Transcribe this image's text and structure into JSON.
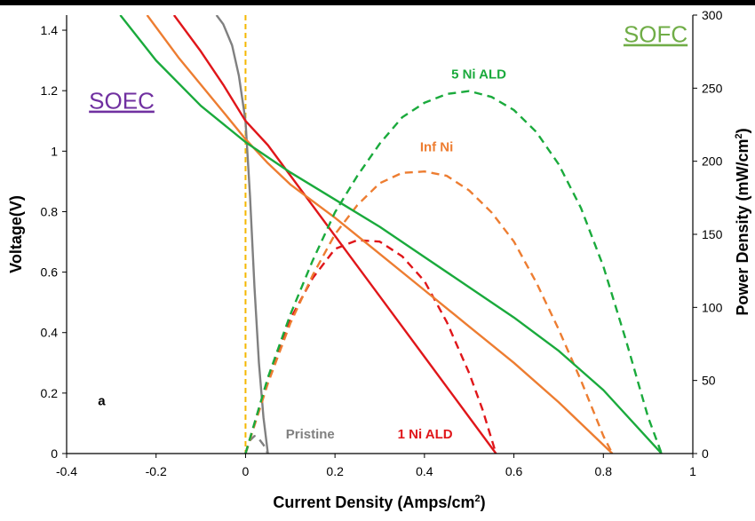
{
  "chart_data": {
    "type": "line",
    "xlabel": "Current Density (Amps/cm",
    "xlabel_sup": "2",
    "xlabel_end": ")",
    "ylabel_left": "Voltage(V)",
    "ylabel_right": "Power Density  (mW/cm",
    "ylabel_right_sup": "2",
    "ylabel_right_end": ")",
    "xlim": [
      -0.4,
      1.0
    ],
    "ylim_left": [
      0,
      1.45
    ],
    "ylim_right": [
      0,
      300
    ],
    "x_ticks": [
      -0.4,
      -0.2,
      0,
      0.2,
      0.4,
      0.6,
      0.8,
      1
    ],
    "x_tick_labels": [
      "-0.4",
      "-0.2",
      "0",
      "0.2",
      "0.4",
      "0.6",
      "0.8",
      "1"
    ],
    "y_left_ticks": [
      0,
      0.2,
      0.4,
      0.6,
      0.8,
      1,
      1.2,
      1.4
    ],
    "y_left_tick_labels": [
      "0",
      "0.2",
      "0.4",
      "0.6",
      "0.8",
      "1",
      "1.2",
      "1.4"
    ],
    "y_right_ticks": [
      0,
      50,
      100,
      150,
      200,
      250,
      300
    ],
    "y_right_tick_labels": [
      "0",
      "50",
      "100",
      "150",
      "200",
      "250",
      "300"
    ],
    "grid": false,
    "zero_line": {
      "x": 0,
      "color": "#F5B800"
    },
    "series": [
      {
        "name": "Pristine",
        "color": "#808080",
        "kind": "voltage",
        "axis": "left",
        "x": [
          -0.065,
          -0.05,
          -0.03,
          -0.015,
          0.0,
          0.01,
          0.02,
          0.03,
          0.04,
          0.05
        ],
        "y": [
          1.45,
          1.42,
          1.35,
          1.25,
          1.1,
          0.85,
          0.55,
          0.3,
          0.12,
          0.0
        ]
      },
      {
        "name": "Pristine",
        "color": "#808080",
        "kind": "power",
        "axis": "right",
        "x": [
          0.0,
          0.01,
          0.02,
          0.03,
          0.04,
          0.05
        ],
        "y": [
          0,
          9,
          12,
          10,
          6,
          0
        ]
      },
      {
        "name": "1 Ni ALD",
        "color": "#E0161A",
        "kind": "voltage",
        "axis": "left",
        "x": [
          -0.16,
          -0.1,
          -0.05,
          0.0,
          0.05,
          0.1,
          0.2,
          0.3,
          0.4,
          0.5,
          0.56
        ],
        "y": [
          1.45,
          1.33,
          1.22,
          1.1,
          1.02,
          0.92,
          0.72,
          0.52,
          0.32,
          0.12,
          0.0
        ]
      },
      {
        "name": "1 Ni ALD",
        "color": "#E0161A",
        "kind": "power",
        "axis": "right",
        "x": [
          0.0,
          0.05,
          0.1,
          0.15,
          0.2,
          0.25,
          0.3,
          0.35,
          0.4,
          0.45,
          0.5,
          0.53,
          0.56
        ],
        "y": [
          0,
          51,
          92,
          120,
          140,
          146,
          145,
          135,
          118,
          90,
          55,
          30,
          0
        ]
      },
      {
        "name": "Inf Ni",
        "color": "#ED7D31",
        "kind": "voltage",
        "axis": "left",
        "x": [
          -0.22,
          -0.15,
          -0.1,
          -0.05,
          0.0,
          0.05,
          0.1,
          0.2,
          0.3,
          0.4,
          0.5,
          0.6,
          0.7,
          0.82
        ],
        "y": [
          1.45,
          1.31,
          1.22,
          1.13,
          1.04,
          0.96,
          0.89,
          0.78,
          0.66,
          0.54,
          0.42,
          0.3,
          0.17,
          0.0
        ]
      },
      {
        "name": "Inf Ni",
        "color": "#ED7D31",
        "kind": "power",
        "axis": "right",
        "x": [
          0.0,
          0.05,
          0.1,
          0.15,
          0.2,
          0.25,
          0.3,
          0.35,
          0.4,
          0.45,
          0.5,
          0.55,
          0.6,
          0.65,
          0.7,
          0.75,
          0.8,
          0.82
        ],
        "y": [
          0,
          48,
          89,
          122,
          150,
          170,
          185,
          192,
          193,
          190,
          180,
          165,
          145,
          117,
          85,
          50,
          12,
          0
        ]
      },
      {
        "name": "5 Ni ALD",
        "color": "#1AAA3C",
        "kind": "voltage",
        "axis": "left",
        "x": [
          -0.28,
          -0.2,
          -0.1,
          0.0,
          0.1,
          0.2,
          0.3,
          0.4,
          0.5,
          0.6,
          0.7,
          0.8,
          0.93
        ],
        "y": [
          1.45,
          1.3,
          1.15,
          1.03,
          0.93,
          0.84,
          0.75,
          0.65,
          0.55,
          0.45,
          0.34,
          0.21,
          0.0
        ]
      },
      {
        "name": "5 Ni ALD",
        "color": "#1AAA3C",
        "kind": "power",
        "axis": "right",
        "x": [
          0.0,
          0.05,
          0.1,
          0.15,
          0.2,
          0.25,
          0.3,
          0.35,
          0.4,
          0.45,
          0.5,
          0.55,
          0.6,
          0.65,
          0.7,
          0.75,
          0.8,
          0.85,
          0.9,
          0.93
        ],
        "y": [
          0,
          52,
          95,
          132,
          165,
          190,
          212,
          230,
          240,
          246,
          248,
          244,
          235,
          220,
          198,
          168,
          128,
          78,
          25,
          0
        ]
      }
    ],
    "annotations": [
      {
        "text": "SOEC",
        "color": "#7030A0",
        "kind": "region",
        "at": [
          -0.35,
          1.14
        ]
      },
      {
        "text": "SOFC",
        "color": "#70AD47",
        "kind": "region",
        "at": [
          0.845,
          1.36
        ]
      },
      {
        "text": "5 Ni ALD",
        "color": "#1AAA3C",
        "kind": "label",
        "at": [
          0.46,
          1.24
        ]
      },
      {
        "text": "Inf Ni",
        "color": "#ED7D31",
        "kind": "label",
        "at": [
          0.39,
          1.0
        ]
      },
      {
        "text": "Pristine",
        "color": "#808080",
        "kind": "label",
        "at": [
          0.09,
          0.05
        ]
      },
      {
        "text": "1 Ni ALD",
        "color": "#E0161A",
        "kind": "label",
        "at": [
          0.34,
          0.05
        ]
      },
      {
        "text": "a",
        "color": "#000000",
        "kind": "panel",
        "at": [
          -0.33,
          0.16
        ]
      }
    ]
  }
}
